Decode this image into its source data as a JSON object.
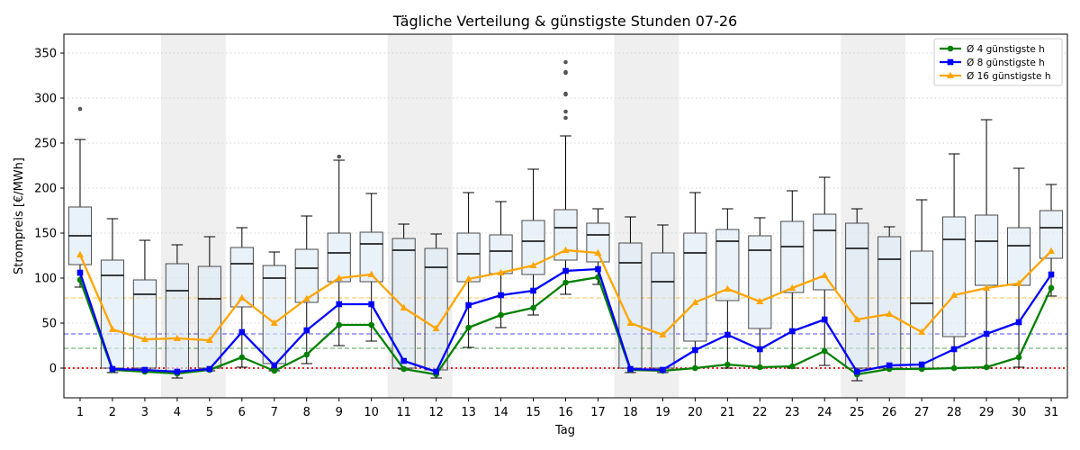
{
  "chart_data": {
    "type": "box",
    "title": "Tägliche Verteilung & günstigste Stunden 07-26",
    "xlabel": "Tag",
    "ylabel": "Strompreis [€/MWh]",
    "ylim": [
      -33,
      371
    ],
    "yticks": [
      0,
      50,
      100,
      150,
      200,
      250,
      300,
      350
    ],
    "grid": "horizontal dotted",
    "legend_position": "top-right",
    "categories": [
      "1",
      "2",
      "3",
      "4",
      "5",
      "6",
      "7",
      "8",
      "9",
      "10",
      "11",
      "12",
      "13",
      "14",
      "15",
      "16",
      "17",
      "18",
      "19",
      "20",
      "21",
      "22",
      "23",
      "24",
      "25",
      "26",
      "27",
      "28",
      "29",
      "30",
      "31"
    ],
    "weekend_days": [
      4,
      5,
      11,
      12,
      18,
      19,
      25,
      26
    ],
    "boxes": [
      {
        "day": 1,
        "q1": 115,
        "median": 147,
        "q3": 179,
        "whisker_low": 90,
        "whisker_high": 254,
        "outliers": [
          288
        ]
      },
      {
        "day": 2,
        "q1": 0,
        "median": 103,
        "q3": 120,
        "whisker_low": -5,
        "whisker_high": 166,
        "outliers": []
      },
      {
        "day": 3,
        "q1": 0,
        "median": 82,
        "q3": 98,
        "whisker_low": -3,
        "whisker_high": 142,
        "outliers": []
      },
      {
        "day": 4,
        "q1": -3,
        "median": 86,
        "q3": 116,
        "whisker_low": -11,
        "whisker_high": 137,
        "outliers": []
      },
      {
        "day": 5,
        "q1": 0,
        "median": 77,
        "q3": 113,
        "whisker_low": -3,
        "whisker_high": 146,
        "outliers": []
      },
      {
        "day": 6,
        "q1": 68,
        "median": 116,
        "q3": 134,
        "whisker_low": 1,
        "whisker_high": 156,
        "outliers": []
      },
      {
        "day": 7,
        "q1": 5,
        "median": 100,
        "q3": 114,
        "whisker_low": -3,
        "whisker_high": 129,
        "outliers": []
      },
      {
        "day": 8,
        "q1": 73,
        "median": 111,
        "q3": 132,
        "whisker_low": 5,
        "whisker_high": 169,
        "outliers": []
      },
      {
        "day": 9,
        "q1": 96,
        "median": 128,
        "q3": 150,
        "whisker_low": 25,
        "whisker_high": 231,
        "outliers": [
          235
        ]
      },
      {
        "day": 10,
        "q1": 96,
        "median": 138,
        "q3": 151,
        "whisker_low": 30,
        "whisker_high": 194,
        "outliers": []
      },
      {
        "day": 11,
        "q1": 0,
        "median": 131,
        "q3": 144,
        "whisker_low": -1,
        "whisker_high": 160,
        "outliers": []
      },
      {
        "day": 12,
        "q1": -2,
        "median": 112,
        "q3": 133,
        "whisker_low": -11,
        "whisker_high": 149,
        "outliers": []
      },
      {
        "day": 13,
        "q1": 96,
        "median": 127,
        "q3": 150,
        "whisker_low": 23,
        "whisker_high": 195,
        "outliers": []
      },
      {
        "day": 14,
        "q1": 105,
        "median": 130,
        "q3": 148,
        "whisker_low": 45,
        "whisker_high": 185,
        "outliers": []
      },
      {
        "day": 15,
        "q1": 104,
        "median": 141,
        "q3": 164,
        "whisker_low": 59,
        "whisker_high": 221,
        "outliers": []
      },
      {
        "day": 16,
        "q1": 120,
        "median": 156,
        "q3": 176,
        "whisker_low": 82,
        "whisker_high": 258,
        "outliers": [
          278,
          285,
          304,
          305,
          328,
          329,
          340
        ]
      },
      {
        "day": 17,
        "q1": 118,
        "median": 148,
        "q3": 161,
        "whisker_low": 93,
        "whisker_high": 177,
        "outliers": []
      },
      {
        "day": 18,
        "q1": 0,
        "median": 117,
        "q3": 139,
        "whisker_low": -5,
        "whisker_high": 168,
        "outliers": []
      },
      {
        "day": 19,
        "q1": 0,
        "median": 96,
        "q3": 128,
        "whisker_low": -5,
        "whisker_high": 159,
        "outliers": []
      },
      {
        "day": 20,
        "q1": 30,
        "median": 128,
        "q3": 150,
        "whisker_low": 0,
        "whisker_high": 195,
        "outliers": []
      },
      {
        "day": 21,
        "q1": 75,
        "median": 141,
        "q3": 154,
        "whisker_low": 0,
        "whisker_high": 177,
        "outliers": []
      },
      {
        "day": 22,
        "q1": 44,
        "median": 131,
        "q3": 147,
        "whisker_low": 0,
        "whisker_high": 167,
        "outliers": []
      },
      {
        "day": 23,
        "q1": 84,
        "median": 135,
        "q3": 163,
        "whisker_low": 0,
        "whisker_high": 197,
        "outliers": []
      },
      {
        "day": 24,
        "q1": 87,
        "median": 153,
        "q3": 171,
        "whisker_low": 3,
        "whisker_high": 212,
        "outliers": []
      },
      {
        "day": 25,
        "q1": 0,
        "median": 133,
        "q3": 161,
        "whisker_low": -14,
        "whisker_high": 177,
        "outliers": []
      },
      {
        "day": 26,
        "q1": 0,
        "median": 121,
        "q3": 146,
        "whisker_low": -1,
        "whisker_high": 157,
        "outliers": []
      },
      {
        "day": 27,
        "q1": 0,
        "median": 72,
        "q3": 130,
        "whisker_low": -1,
        "whisker_high": 187,
        "outliers": []
      },
      {
        "day": 28,
        "q1": 35,
        "median": 143,
        "q3": 168,
        "whisker_low": 0,
        "whisker_high": 238,
        "outliers": []
      },
      {
        "day": 29,
        "q1": 92,
        "median": 141,
        "q3": 170,
        "whisker_low": 0,
        "whisker_high": 276,
        "outliers": []
      },
      {
        "day": 30,
        "q1": 92,
        "median": 136,
        "q3": 156,
        "whisker_low": 1,
        "whisker_high": 222,
        "outliers": []
      },
      {
        "day": 31,
        "q1": 122,
        "median": 156,
        "q3": 175,
        "whisker_low": 80,
        "whisker_high": 204,
        "outliers": []
      }
    ],
    "series": [
      {
        "name": "Ø 4 günstigste h",
        "color": "#008000",
        "marker": "circle",
        "mean_line": 22,
        "values": [
          98,
          -2,
          -4,
          -6,
          -2,
          12,
          -3,
          15,
          48,
          48,
          -1,
          -7,
          45,
          59,
          67,
          95,
          101,
          -2,
          -3,
          0,
          4,
          1,
          2,
          19,
          -7,
          -1,
          -1,
          0,
          1,
          12,
          89
        ]
      },
      {
        "name": "Ø 8 günstigste h",
        "color": "#0000ff",
        "marker": "square",
        "mean_line": 38,
        "values": [
          106,
          -1,
          -2,
          -4,
          -1,
          40,
          3,
          42,
          71,
          71,
          8,
          -4,
          70,
          81,
          86,
          108,
          110,
          -1,
          -2,
          20,
          37,
          21,
          41,
          54,
          -4,
          3,
          4,
          21,
          38,
          51,
          104
        ]
      },
      {
        "name": "Ø 16 günstigste h",
        "color": "#ffa500",
        "marker": "triangle",
        "mean_line": 78,
        "values": [
          126,
          43,
          32,
          33,
          31,
          78,
          50,
          77,
          100,
          104,
          67,
          44,
          99,
          106,
          114,
          131,
          128,
          50,
          37,
          73,
          88,
          74,
          89,
          103,
          54,
          60,
          40,
          81,
          89,
          94,
          130
        ]
      }
    ],
    "zero_line_color": "#ff0000"
  }
}
